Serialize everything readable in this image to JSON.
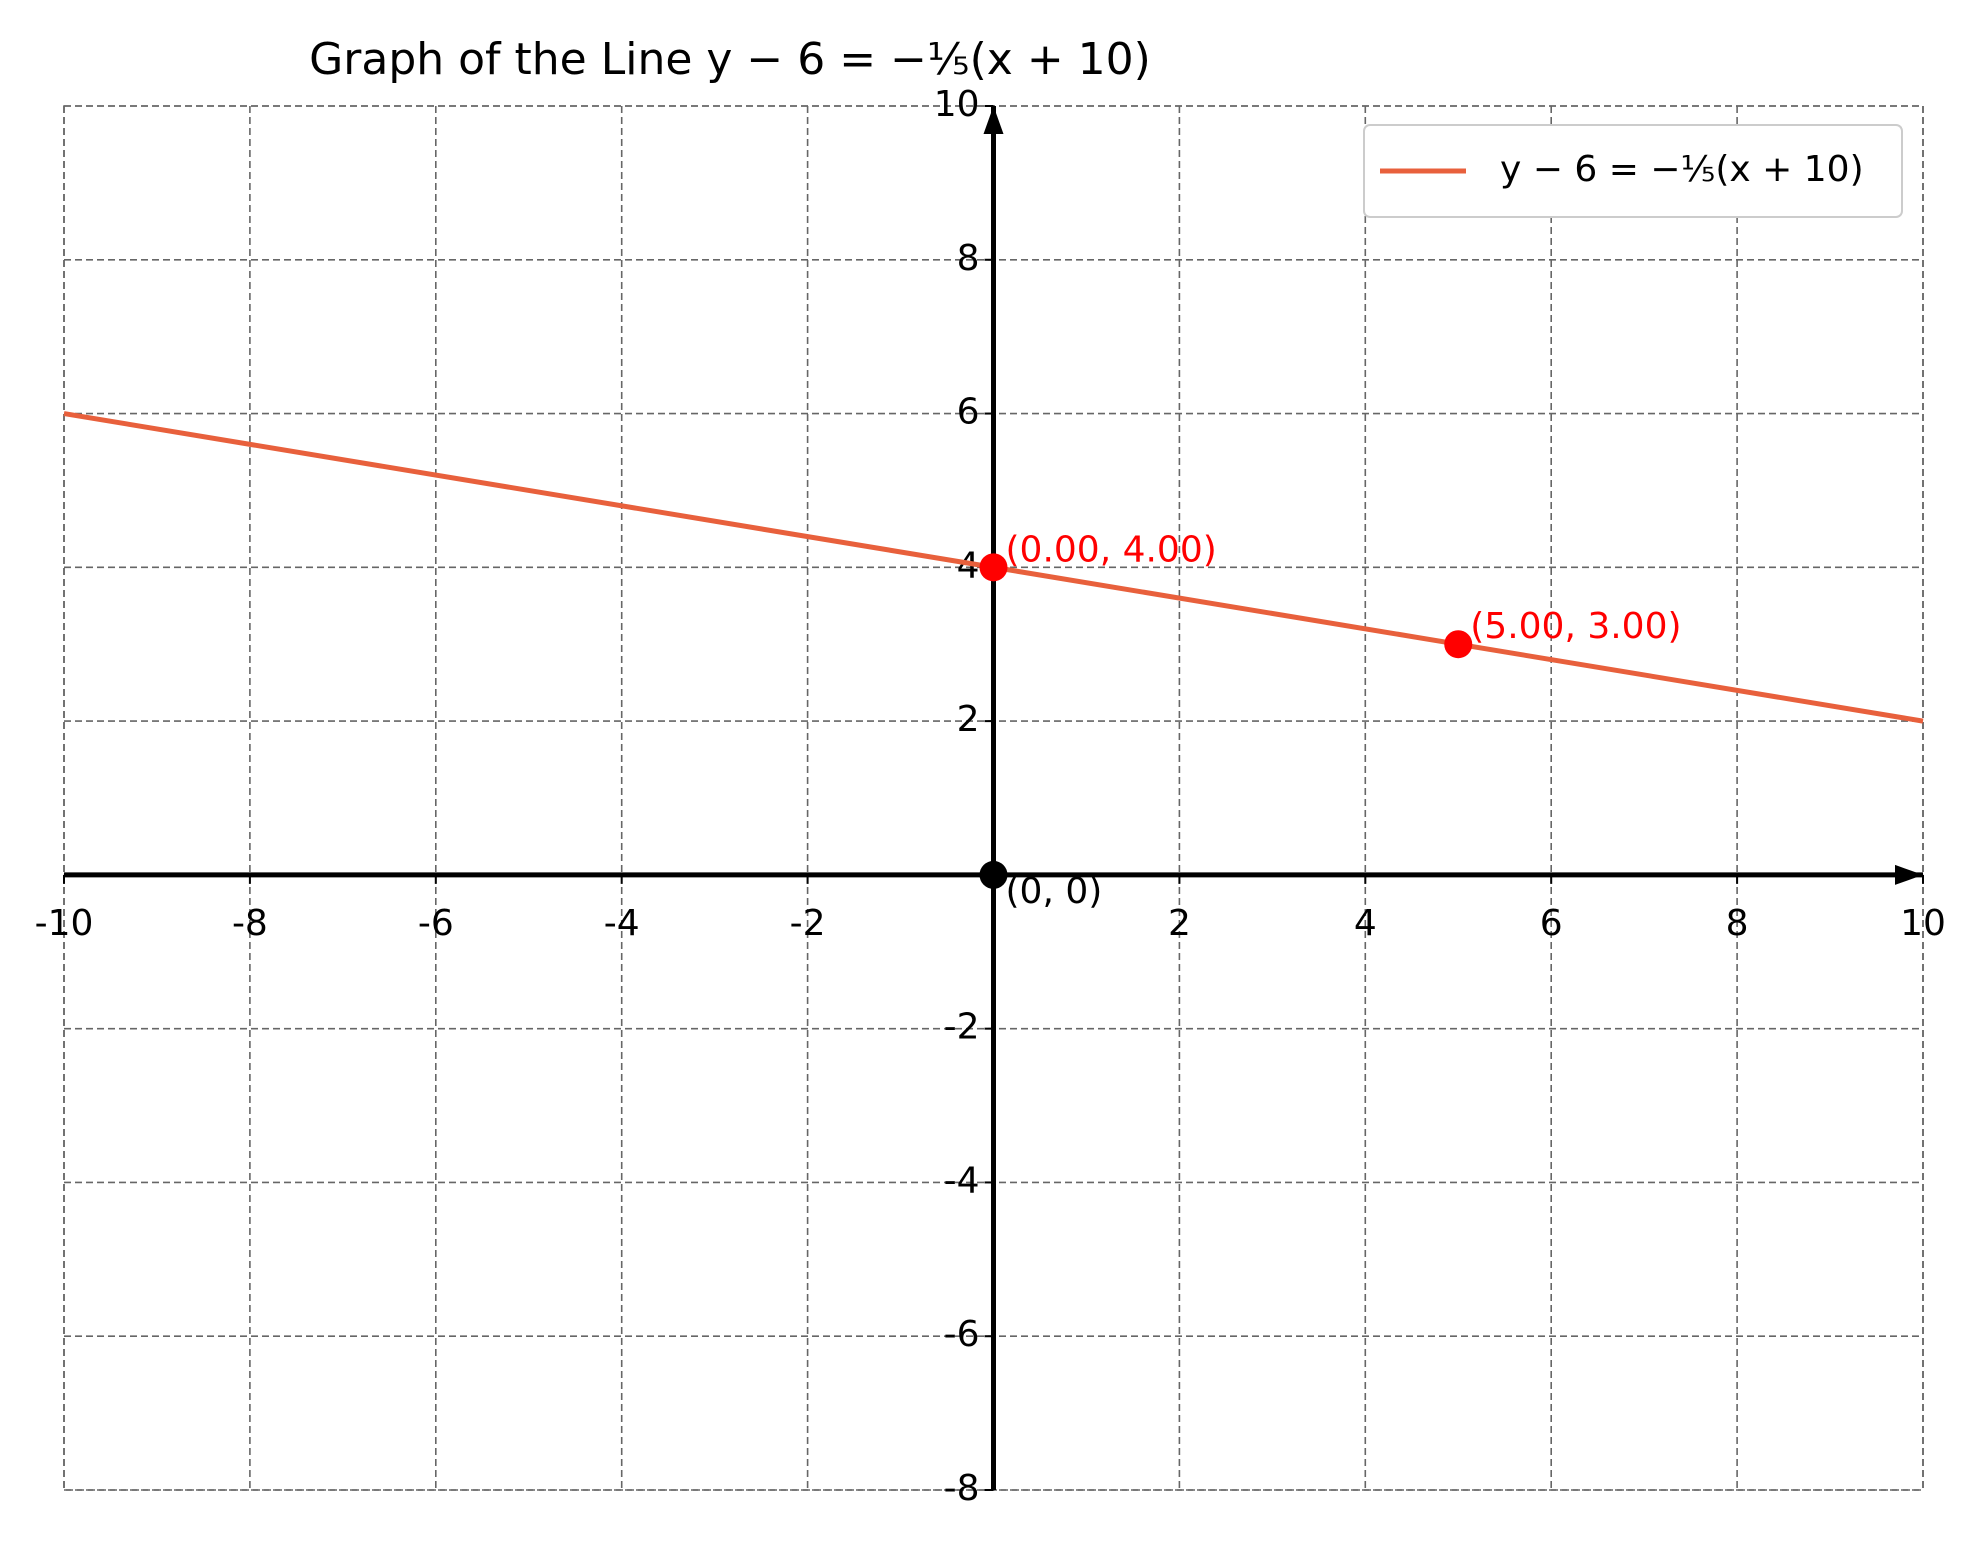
{
  "chart_data": {
    "type": "line",
    "title": "Graph of the Line y − 6 = −⅕(x + 10)",
    "x": [
      -10,
      10
    ],
    "series": [
      {
        "name": "y − 6 = −⅕(x + 10)",
        "color": "#e8603c",
        "values": [
          6,
          2
        ]
      }
    ],
    "points": [
      {
        "x": 0,
        "y": 4,
        "label": "(0.00, 4.00)",
        "color": "#ff0000"
      },
      {
        "x": 5,
        "y": 3,
        "label": "(5.00, 3.00)",
        "color": "#ff0000"
      },
      {
        "x": 0,
        "y": 0,
        "label": "(0, 0)",
        "color": "#000000"
      }
    ],
    "xlim": [
      -10,
      10
    ],
    "ylim": [
      -8,
      10
    ],
    "xticks": [
      -10,
      -8,
      -6,
      -4,
      -2,
      2,
      4,
      6,
      8,
      10
    ],
    "yticks": [
      -8,
      -6,
      -4,
      -2,
      2,
      4,
      6,
      8,
      10
    ],
    "grid": true,
    "legend": "upper right"
  }
}
